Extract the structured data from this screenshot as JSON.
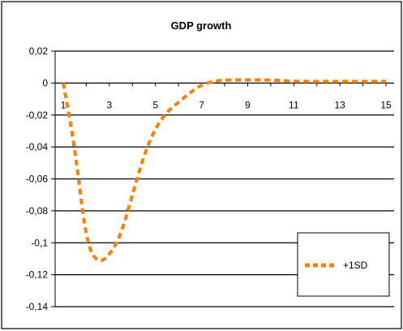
{
  "chart_data": {
    "type": "line",
    "title": "GDP growth",
    "xlabel": "",
    "ylabel": "",
    "x": [
      1,
      1.5,
      2,
      2.5,
      3,
      3.5,
      4,
      4.5,
      5,
      5.5,
      6,
      6.5,
      7,
      7.5,
      8,
      9,
      10,
      11,
      12,
      13,
      14,
      15
    ],
    "series": [
      {
        "name": "+1SD",
        "color": "#ff7f00",
        "values": [
          0,
          -0.04,
          -0.1,
          -0.113,
          -0.108,
          -0.095,
          -0.07,
          -0.045,
          -0.028,
          -0.018,
          -0.012,
          -0.006,
          -0.001,
          0.001,
          0.002,
          0.002,
          0.002,
          0.001,
          0.001,
          0.001,
          0.001,
          0.001
        ]
      }
    ],
    "xlim": [
      1,
      15
    ],
    "ylim": [
      -0.14,
      0.02
    ],
    "x_ticks": [
      "1",
      "3",
      "5",
      "7",
      "9",
      "11",
      "13",
      "15"
    ],
    "y_ticks": [
      "0,02",
      "0",
      "-0,02",
      "-0,04",
      "-0,06",
      "-0,08",
      "-0,1",
      "-0,12",
      "-0,14"
    ],
    "y_tick_values": [
      0.02,
      0,
      -0.02,
      -0.04,
      -0.06,
      -0.08,
      -0.1,
      -0.12,
      -0.14
    ],
    "grid": true,
    "legend_position": "bottom-right"
  }
}
